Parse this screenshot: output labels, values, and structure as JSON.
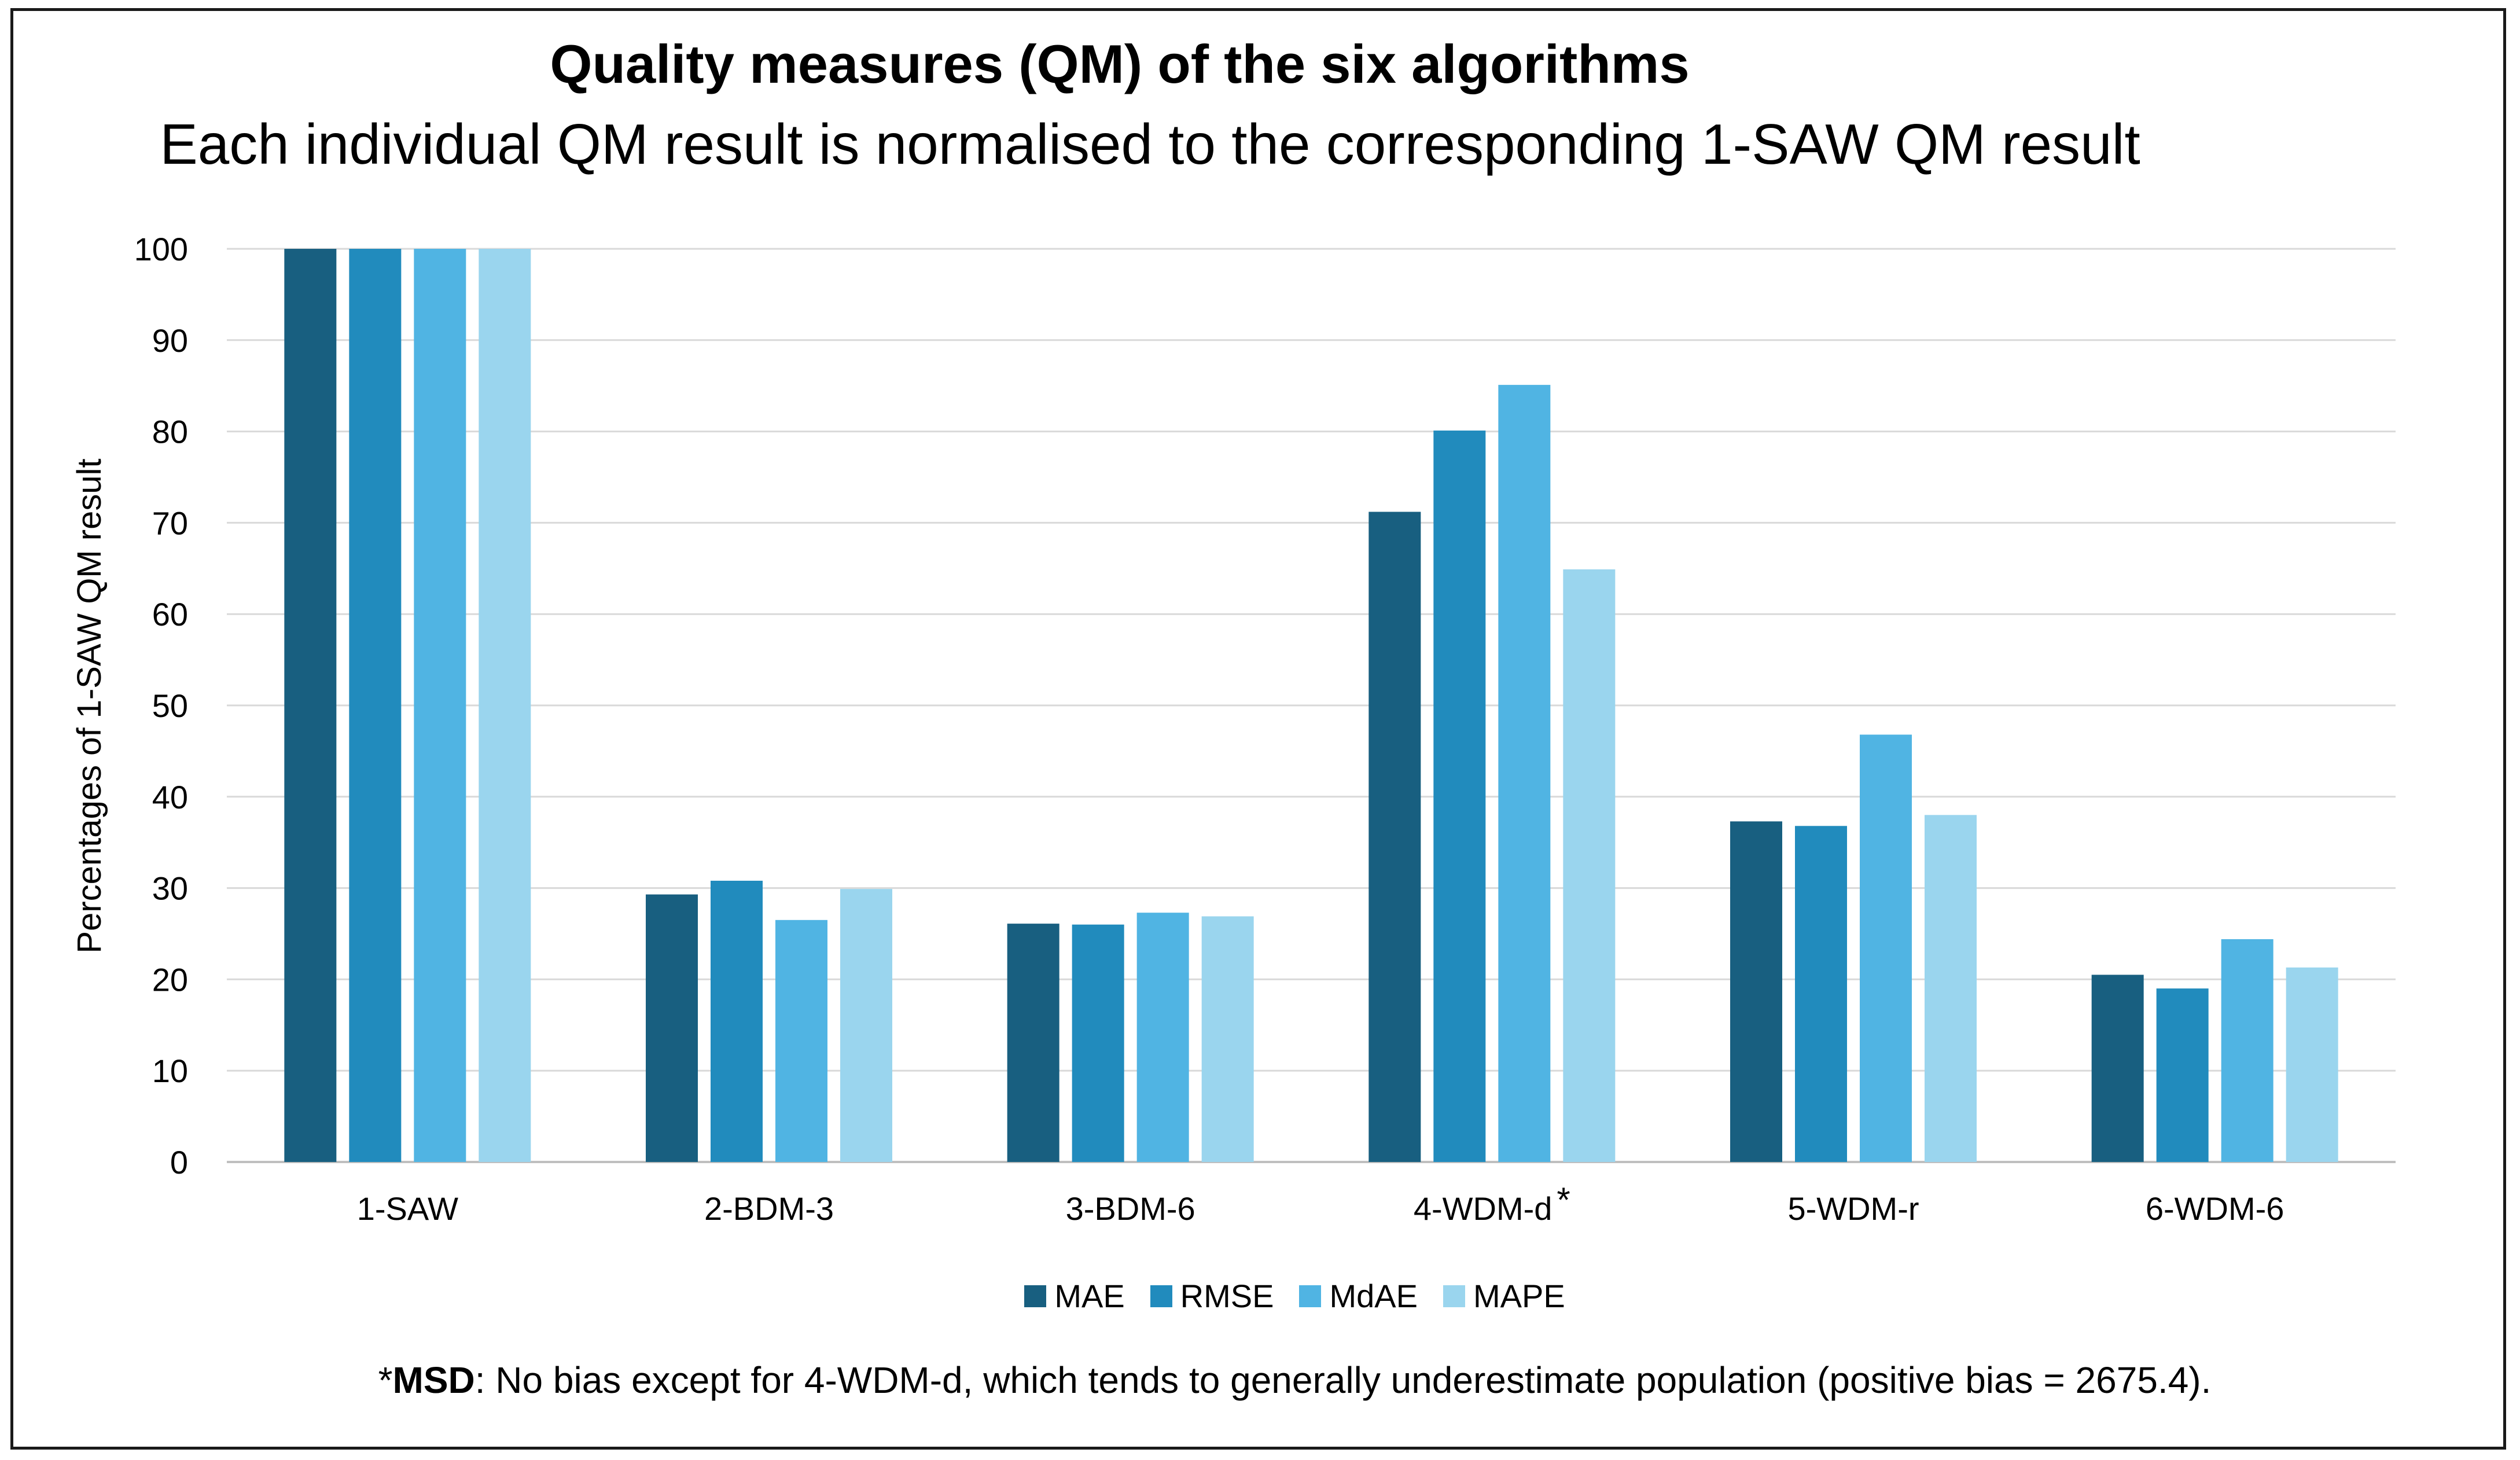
{
  "chart_data": {
    "type": "bar",
    "title": "Quality measures (QM) of the six algorithms",
    "subtitle": "Each individual QM result is normalised to the corresponding 1-SAW QM result",
    "xlabel": "",
    "ylabel": "Percentages of 1-SAW QM result",
    "ylim": [
      0,
      100
    ],
    "yticks": [
      0,
      10,
      20,
      30,
      40,
      50,
      60,
      70,
      80,
      90,
      100
    ],
    "grid": true,
    "legend_position": "bottom",
    "categories": [
      "1-SAW",
      "2-BDM-3",
      "3-BDM-6",
      "4-WDM-d",
      "5-WDM-r",
      "6-WDM-6"
    ],
    "category_markers": [
      "",
      "",
      "",
      "*",
      "",
      ""
    ],
    "series": [
      {
        "name": "MAE",
        "color": "#185f80",
        "values": [
          100,
          29.3,
          26.1,
          71.2,
          37.3,
          20.5
        ]
      },
      {
        "name": "RMSE",
        "color": "#218bbd",
        "values": [
          100,
          30.8,
          26.0,
          80.1,
          36.8,
          19.0
        ]
      },
      {
        "name": "MdAE",
        "color": "#50b4e3",
        "values": [
          100,
          26.5,
          27.3,
          85.1,
          46.8,
          24.4
        ]
      },
      {
        "name": "MAPE",
        "color": "#9ad5ee",
        "values": [
          100,
          29.9,
          26.9,
          64.9,
          38.0,
          21.3
        ]
      }
    ],
    "footnote": {
      "prefix": "*",
      "bold": "MSD",
      "text": ": No bias except for 4-WDM-d, which tends to generally underestimate population (positive bias = 2675.4)."
    }
  },
  "colors": {
    "gridline": "#d9d9d9",
    "axis": "#bfbfbf",
    "frame": "#1a1a1a"
  }
}
